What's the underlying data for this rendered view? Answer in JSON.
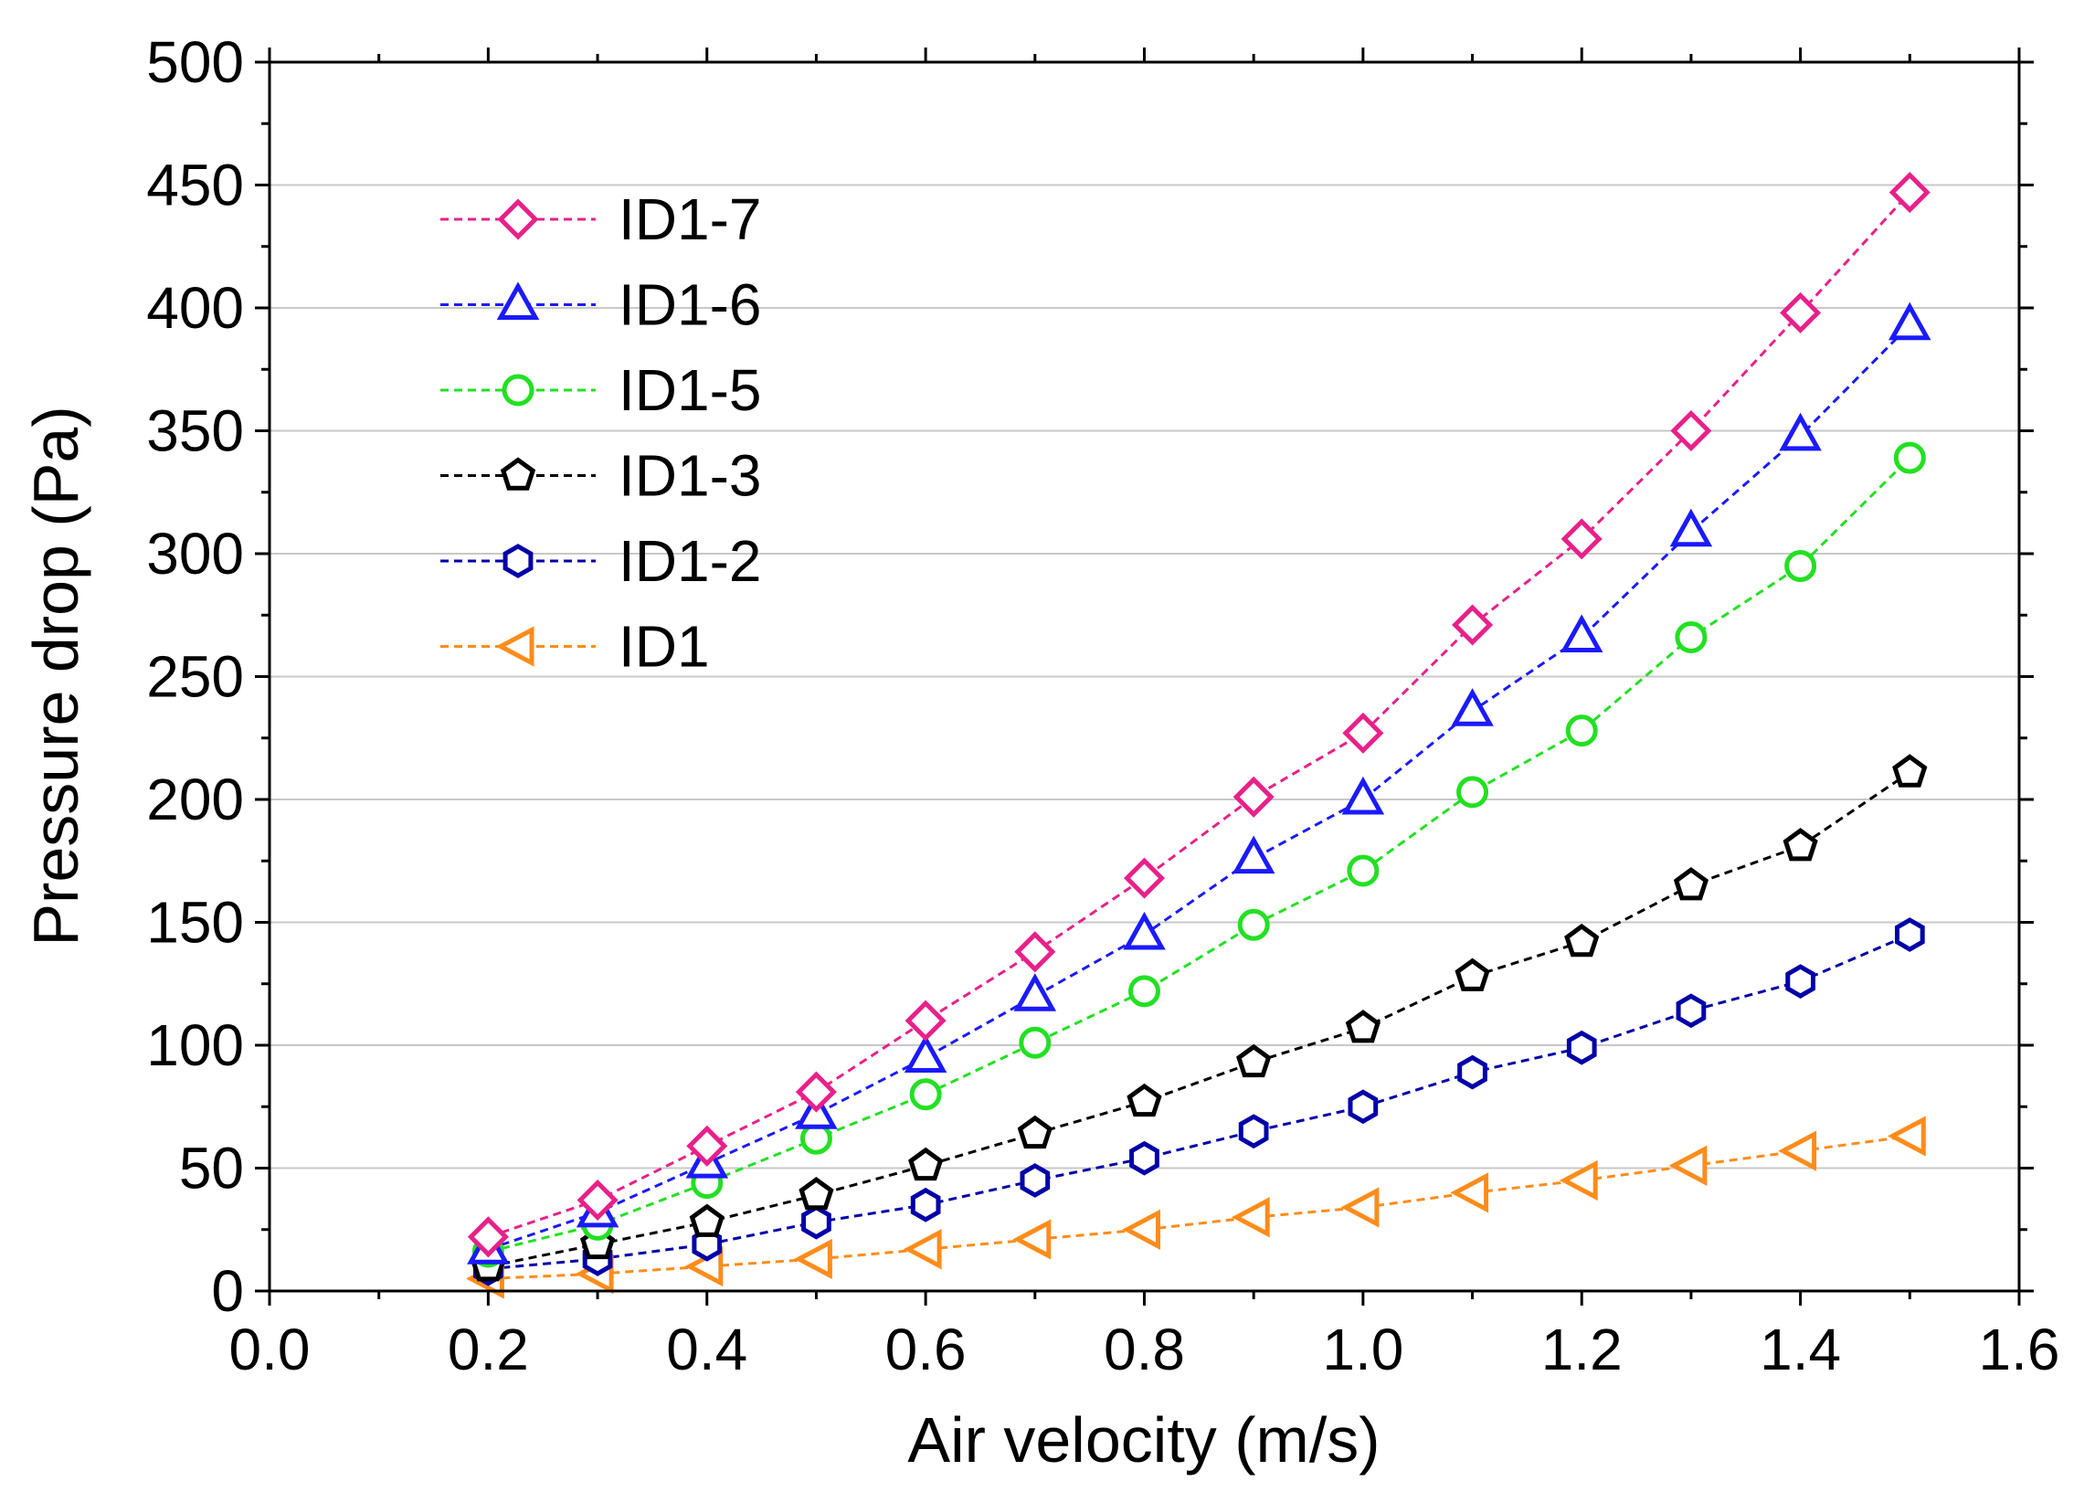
{
  "chart_data": {
    "type": "line",
    "title": "",
    "xlabel": "Air velocity (m/s)",
    "ylabel": "Pressure drop (Pa)",
    "xlim": [
      0.0,
      1.6
    ],
    "ylim": [
      0,
      500
    ],
    "x_ticks": [
      "0.0",
      "0.2",
      "0.4",
      "0.6",
      "0.8",
      "1.0",
      "1.2",
      "1.4",
      "1.6"
    ],
    "y_ticks": [
      "0",
      "50",
      "100",
      "150",
      "200",
      "250",
      "300",
      "350",
      "400",
      "450",
      "500"
    ],
    "grid": "horizontal",
    "legend_position": "top-left",
    "x": [
      0.2,
      0.3,
      0.4,
      0.5,
      0.6,
      0.7,
      0.8,
      0.9,
      1.0,
      1.1,
      1.2,
      1.3,
      1.4,
      1.5
    ],
    "series": [
      {
        "name": "ID1-7",
        "color": "#e8208a",
        "marker": "diamond",
        "values": [
          22,
          37,
          59,
          81,
          110,
          138,
          168,
          201,
          227,
          271,
          306,
          350,
          398,
          447
        ]
      },
      {
        "name": "ID1-6",
        "color": "#1a1aff",
        "marker": "triangle-up",
        "values": [
          17,
          32,
          52,
          72,
          95,
          120,
          145,
          176,
          200,
          236,
          266,
          309,
          348,
          393
        ]
      },
      {
        "name": "ID1-5",
        "color": "#22e022",
        "marker": "circle",
        "values": [
          16,
          27,
          44,
          62,
          80,
          101,
          122,
          149,
          171,
          203,
          228,
          266,
          295,
          339
        ]
      },
      {
        "name": "ID1-3",
        "color": "#000000",
        "marker": "pentagon",
        "values": [
          10,
          19,
          28,
          39,
          51,
          64,
          77,
          93,
          107,
          128,
          142,
          165,
          181,
          211
        ]
      },
      {
        "name": "ID1-2",
        "color": "#0000a8",
        "marker": "hexagon",
        "values": [
          9,
          13,
          19,
          28,
          35,
          45,
          54,
          65,
          75,
          89,
          99,
          114,
          126,
          145
        ]
      },
      {
        "name": "ID1",
        "color": "#ff8c1a",
        "marker": "triangle-left",
        "values": [
          5,
          7,
          10,
          13,
          17,
          21,
          25,
          30,
          34,
          40,
          45,
          51,
          57,
          63
        ]
      }
    ]
  }
}
